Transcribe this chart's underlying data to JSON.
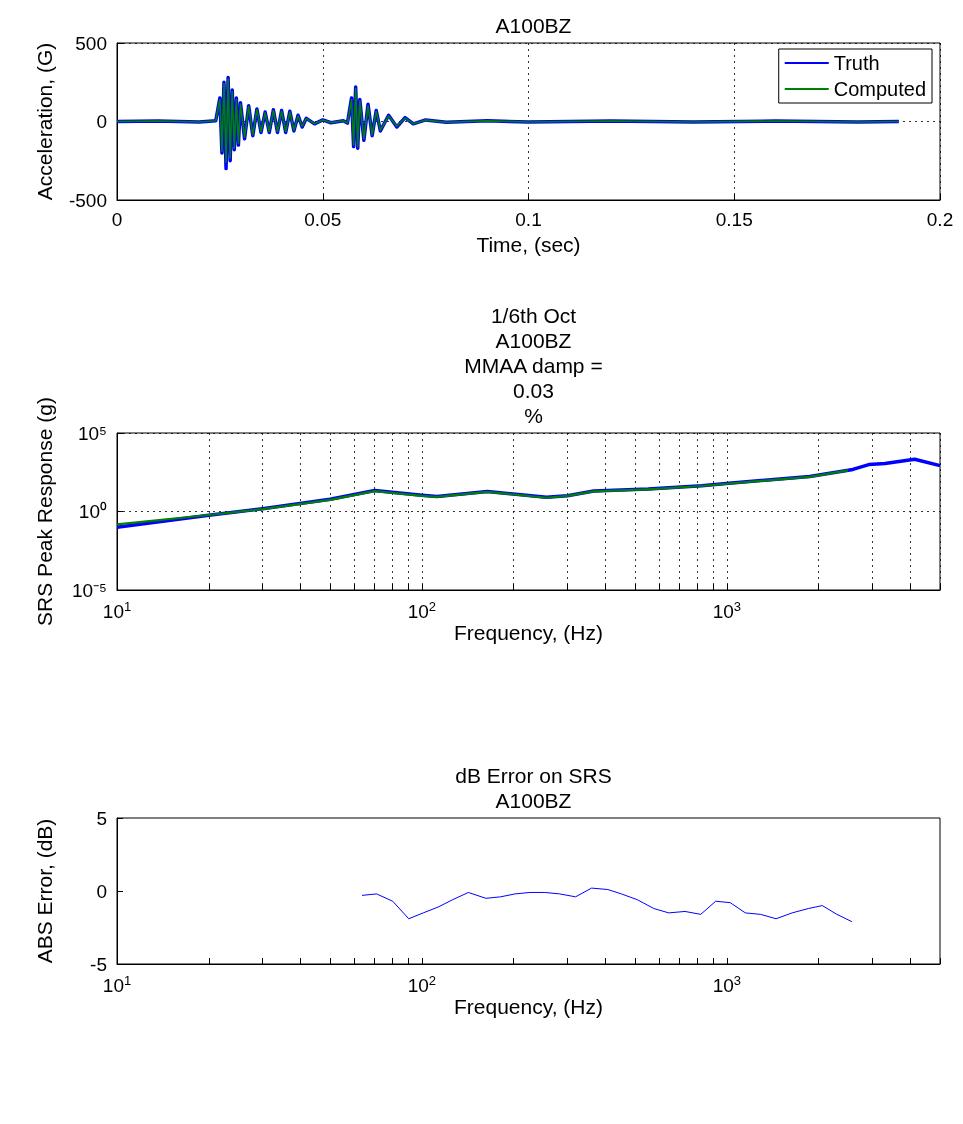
{
  "chart_data": [
    {
      "type": "line",
      "title": "A100BZ",
      "xlabel": "Time, (sec)",
      "ylabel": "Acceleration, (G)",
      "xlim": [
        0,
        0.2
      ],
      "xticks": [
        0,
        0.05,
        0.1,
        0.15,
        0.2
      ],
      "ylim": [
        -500,
        500
      ],
      "yticks": [
        -500,
        0,
        500
      ],
      "grid": true,
      "legend": "top right",
      "x": [
        0,
        0.01,
        0.02,
        0.024,
        0.025,
        0.0255,
        0.026,
        0.0265,
        0.027,
        0.0275,
        0.028,
        0.0285,
        0.029,
        0.0295,
        0.03,
        0.031,
        0.032,
        0.033,
        0.034,
        0.035,
        0.036,
        0.037,
        0.038,
        0.039,
        0.04,
        0.041,
        0.042,
        0.043,
        0.044,
        0.045,
        0.046,
        0.048,
        0.05,
        0.052,
        0.055,
        0.056,
        0.057,
        0.0575,
        0.058,
        0.0585,
        0.059,
        0.06,
        0.061,
        0.062,
        0.063,
        0.064,
        0.066,
        0.068,
        0.07,
        0.072,
        0.075,
        0.08,
        0.09,
        0.1,
        0.12,
        0.14,
        0.16,
        0.18,
        0.19
      ],
      "series": [
        {
          "name": "Truth",
          "color": "#0000ff",
          "values": [
            0,
            3,
            -3,
            5,
            150,
            -200,
            250,
            -300,
            280,
            -250,
            200,
            -180,
            150,
            -150,
            120,
            -110,
            100,
            -90,
            80,
            -70,
            60,
            -70,
            75,
            -70,
            70,
            -70,
            65,
            -60,
            40,
            -35,
            20,
            -15,
            10,
            -8,
            5,
            -10,
            150,
            -160,
            220,
            -170,
            140,
            -120,
            110,
            -90,
            70,
            -60,
            40,
            -35,
            25,
            -15,
            10,
            -5,
            4,
            -3,
            3,
            -3,
            3,
            -3,
            0
          ]
        },
        {
          "name": "Computed",
          "color": "#008000",
          "values": [
            0,
            3,
            -3,
            5,
            140,
            -190,
            240,
            -260,
            270,
            -230,
            190,
            -170,
            140,
            -140,
            110,
            -100,
            95,
            -85,
            75,
            -65,
            55,
            -65,
            70,
            -65,
            65,
            -65,
            60,
            -55,
            35,
            -30,
            18,
            -14,
            9,
            -7,
            5,
            -9,
            140,
            -150,
            210,
            -160,
            130,
            -110,
            100,
            -85,
            65,
            -55,
            35,
            -30,
            22,
            -14,
            9,
            -5,
            4,
            -3,
            3,
            -3,
            3,
            -3,
            0
          ]
        }
      ]
    },
    {
      "type": "line",
      "title": "1/6th Oct\nA100BZ\nMMAA damp =\n0.03\n%",
      "xlabel": "Frequency, (Hz)",
      "ylabel": "SRS Peak Response (g)",
      "log": "xy",
      "grid": true,
      "xlim": [
        10,
        5000
      ],
      "xticks": [
        {
          "value": 10,
          "label": "10$^{1}$"
        },
        {
          "value": 20,
          "label": null
        },
        {
          "value": 30,
          "label": null
        },
        {
          "value": 40,
          "label": null
        },
        {
          "value": 50,
          "label": null
        },
        {
          "value": 60,
          "label": null
        },
        {
          "value": 70,
          "label": null
        },
        {
          "value": 80,
          "label": null
        },
        {
          "value": 90,
          "label": null
        },
        {
          "value": 100,
          "label": "10$^{2}$"
        },
        {
          "value": 200,
          "label": null
        },
        {
          "value": 300,
          "label": null
        },
        {
          "value": 400,
          "label": null
        },
        {
          "value": 500,
          "label": null
        },
        {
          "value": 600,
          "label": null
        },
        {
          "value": 700,
          "label": null
        },
        {
          "value": 800,
          "label": null
        },
        {
          "value": 900,
          "label": null
        },
        {
          "value": 1000,
          "label": "10$^{3}$"
        },
        {
          "value": 2000,
          "label": null
        },
        {
          "value": 3000,
          "label": null
        },
        {
          "value": 4000,
          "label": null
        },
        {
          "value": 5000,
          "label": null
        }
      ],
      "ylim": [
        1e-05,
        100000
      ],
      "yticks": [
        {
          "value": 1e-05,
          "label": "10⁻⁵"
        },
        {
          "value": 1,
          "label": "10⁰"
        },
        {
          "value": 100000,
          "label": "10⁵"
        }
      ],
      "series": [
        {
          "color": "#0000ff",
          "x": [
            10,
            20,
            30,
            50,
            70,
            100,
            112,
            164,
            256,
            300,
            366,
            552,
            828,
            1037,
            1870,
            2590,
            2920,
            3300,
            4130,
            5000
          ],
          "values": [
            0.1,
            0.57,
            1.5,
            6,
            22,
            11,
            9,
            19,
            8,
            10,
            20,
            27,
            44,
            66,
            170,
            480,
            970,
            1140,
            2140,
            830
          ]
        },
        {
          "color": "#008000",
          "x": [
            10,
            20,
            30,
            50,
            70,
            100,
            112,
            164,
            256,
            300,
            366,
            552,
            828,
            1037,
            1870,
            2500
          ],
          "values": [
            0.15,
            0.6,
            1.4,
            5.5,
            20,
            10,
            8.5,
            18,
            7.5,
            10,
            19,
            26,
            42,
            62,
            160,
            420
          ]
        }
      ]
    },
    {
      "type": "line",
      "title": "dB Error on SRS\nA100BZ",
      "xlabel": "Frequency, (Hz)",
      "ylabel": "ABS Error, (dB)",
      "log": "x",
      "xlim": [
        10,
        5000
      ],
      "xticks": [
        {
          "value": 10,
          "label": "10$^{1}$"
        },
        {
          "value": 20,
          "label": null
        },
        {
          "value": 30,
          "label": null
        },
        {
          "value": 40,
          "label": null
        },
        {
          "value": 50,
          "label": null
        },
        {
          "value": 60,
          "label": null
        },
        {
          "value": 70,
          "label": null
        },
        {
          "value": 80,
          "label": null
        },
        {
          "value": 90,
          "label": null
        },
        {
          "value": 100,
          "label": "10$^{2}$"
        },
        {
          "value": 200,
          "label": null
        },
        {
          "value": 300,
          "label": null
        },
        {
          "value": 400,
          "label": null
        },
        {
          "value": 500,
          "label": null
        },
        {
          "value": 600,
          "label": null
        },
        {
          "value": 700,
          "label": null
        },
        {
          "value": 800,
          "label": null
        },
        {
          "value": 900,
          "label": null
        },
        {
          "value": 1000,
          "label": "10$^{3}$"
        },
        {
          "value": 2000,
          "label": null
        },
        {
          "value": 3000,
          "label": null
        },
        {
          "value": 4000,
          "label": null
        },
        {
          "value": 5000,
          "label": null
        }
      ],
      "ylim": [
        -5,
        5
      ],
      "yticks": [
        -5,
        0,
        5
      ],
      "series": [
        {
          "color": "#0000ff",
          "x": [
            63.6,
            71,
            80.2,
            90.5,
            101,
            113,
            126,
            142,
            162,
            181,
            202,
            226,
            253,
            283,
            319,
            360,
            407,
            451,
            509,
            576,
            645,
            729,
            821,
            919,
            1026,
            1150,
            1290,
            1450,
            1637,
            1850,
            2056,
            2296,
            2570
          ],
          "values": [
            -0.3,
            -0.2,
            -0.7,
            -1.9,
            -1.5,
            -1.1,
            -0.6,
            -0.1,
            -0.5,
            -0.4,
            -0.2,
            -0.1,
            -0.1,
            -0.2,
            -0.4,
            0.2,
            0.1,
            -0.2,
            -0.6,
            -1.2,
            -1.5,
            -1.4,
            -1.6,
            -0.7,
            -0.8,
            -1.5,
            -1.6,
            -1.9,
            -1.5,
            -1.2,
            -1.0,
            -1.6,
            -2.1
          ]
        }
      ]
    }
  ]
}
